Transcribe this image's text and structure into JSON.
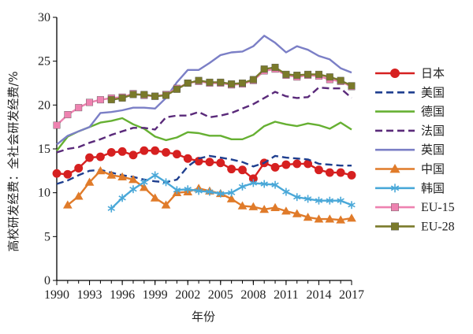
{
  "chart_data": {
    "type": "line",
    "title": "",
    "xlabel": "年份",
    "ylabel": "高校研发经费：全社会研发经费/%",
    "xlim": [
      1990,
      2017
    ],
    "ylim": [
      0,
      30
    ],
    "x_ticks": [
      "1990",
      "1993",
      "1996",
      "1999",
      "2002",
      "2005",
      "2008",
      "2011",
      "2014",
      "2017"
    ],
    "y_ticks": [
      "0",
      "5",
      "10",
      "15",
      "20",
      "25",
      "30"
    ],
    "legend_position": "right",
    "series": [
      {
        "name": "日本",
        "color": "#d62020",
        "dash": "solid",
        "marker": "circle",
        "x": [
          1990,
          1991,
          1992,
          1993,
          1994,
          1995,
          1996,
          1997,
          1998,
          1999,
          2000,
          2001,
          2002,
          2003,
          2004,
          2005,
          2006,
          2007,
          2008,
          2009,
          2010,
          2011,
          2012,
          2013,
          2014,
          2015,
          2016,
          2017
        ],
        "values": [
          12.2,
          12.1,
          12.8,
          14.0,
          14.1,
          14.6,
          14.7,
          14.3,
          14.8,
          14.8,
          14.6,
          14.4,
          13.9,
          13.6,
          13.5,
          13.4,
          12.7,
          12.6,
          11.6,
          13.4,
          12.9,
          13.2,
          13.3,
          13.3,
          12.6,
          12.3,
          12.3,
          12.0
        ]
      },
      {
        "name": "美国",
        "color": "#1f3f8f",
        "dash": "dash",
        "marker": "none",
        "x": [
          1990,
          1991,
          1992,
          1993,
          1994,
          1995,
          1996,
          1997,
          1998,
          1999,
          2000,
          2001,
          2002,
          2003,
          2004,
          2005,
          2006,
          2007,
          2008,
          2009,
          2010,
          2011,
          2012,
          2013,
          2014,
          2015,
          2016,
          2017
        ],
        "values": [
          11.0,
          11.4,
          12.0,
          12.5,
          12.6,
          12.3,
          12.0,
          11.8,
          11.5,
          11.3,
          11.2,
          11.5,
          13.0,
          13.9,
          14.2,
          14.0,
          13.8,
          13.5,
          13.0,
          13.4,
          14.2,
          14.0,
          13.9,
          13.8,
          13.3,
          13.2,
          13.1,
          13.1
        ]
      },
      {
        "name": "德国",
        "color": "#66b032",
        "dash": "solid",
        "marker": "none",
        "x": [
          1990,
          1991,
          1992,
          1993,
          1994,
          1995,
          1996,
          1997,
          1998,
          1999,
          2000,
          2001,
          2002,
          2003,
          2004,
          2005,
          2006,
          2007,
          2008,
          2009,
          2010,
          2011,
          2012,
          2013,
          2014,
          2015,
          2016,
          2017
        ],
        "values": [
          14.8,
          16.4,
          17.0,
          17.5,
          18.0,
          18.2,
          18.5,
          17.8,
          17.3,
          16.4,
          16.0,
          16.3,
          16.9,
          16.8,
          16.5,
          16.5,
          16.1,
          16.1,
          16.6,
          17.6,
          18.1,
          17.8,
          17.6,
          17.9,
          17.7,
          17.3,
          18.0,
          17.2
        ]
      },
      {
        "name": "法国",
        "color": "#5a2a7a",
        "dash": "dash",
        "marker": "none",
        "x": [
          1990,
          1991,
          1992,
          1993,
          1994,
          1995,
          1996,
          1997,
          1998,
          1999,
          2000,
          2001,
          2002,
          2003,
          2004,
          2005,
          2006,
          2007,
          2008,
          2009,
          2010,
          2011,
          2012,
          2013,
          2014,
          2015,
          2016,
          2017
        ],
        "values": [
          14.6,
          15.0,
          15.2,
          15.7,
          16.1,
          16.6,
          17.0,
          17.4,
          17.4,
          17.2,
          18.6,
          18.8,
          18.8,
          19.2,
          18.6,
          18.8,
          19.1,
          19.6,
          20.1,
          20.8,
          21.5,
          21.0,
          20.8,
          20.9,
          22.0,
          21.9,
          21.9,
          20.8
        ]
      },
      {
        "name": "英国",
        "color": "#7b7fc6",
        "dash": "solid",
        "marker": "none",
        "x": [
          1990,
          1991,
          1992,
          1993,
          1994,
          1995,
          1996,
          1997,
          1998,
          1999,
          2000,
          2001,
          2002,
          2003,
          2004,
          2005,
          2006,
          2007,
          2008,
          2009,
          2010,
          2011,
          2012,
          2013,
          2014,
          2015,
          2016,
          2017
        ],
        "values": [
          15.5,
          16.5,
          17.0,
          17.5,
          19.1,
          19.2,
          19.4,
          19.7,
          19.7,
          19.6,
          20.8,
          22.6,
          24.0,
          24.0,
          24.8,
          25.7,
          26.0,
          26.1,
          26.7,
          27.9,
          27.1,
          26.0,
          26.7,
          26.3,
          25.6,
          25.2,
          24.2,
          23.7
        ]
      },
      {
        "name": "中国",
        "color": "#e07b2a",
        "dash": "solid",
        "marker": "triangle",
        "x": [
          1991,
          1992,
          1993,
          1994,
          1995,
          1996,
          1997,
          1998,
          1999,
          2000,
          2001,
          2002,
          2003,
          2004,
          2005,
          2006,
          2007,
          2008,
          2009,
          2010,
          2011,
          2012,
          2013,
          2014,
          2015,
          2016,
          2017
        ],
        "values": [
          8.6,
          9.6,
          11.2,
          12.5,
          12.0,
          11.8,
          11.5,
          10.6,
          9.4,
          8.6,
          10.0,
          10.1,
          10.5,
          10.2,
          9.9,
          9.3,
          8.5,
          8.4,
          8.1,
          8.3,
          7.9,
          7.6,
          7.2,
          7.0,
          7.0,
          6.9,
          7.1
        ]
      },
      {
        "name": "韩国",
        "color": "#4aa8d8",
        "dash": "solid",
        "marker": "asterisk",
        "x": [
          1995,
          1996,
          1997,
          1998,
          1999,
          2000,
          2001,
          2002,
          2003,
          2004,
          2005,
          2006,
          2007,
          2008,
          2009,
          2010,
          2011,
          2012,
          2013,
          2014,
          2015,
          2016,
          2017
        ],
        "values": [
          8.2,
          9.4,
          10.4,
          11.2,
          12.0,
          11.2,
          10.3,
          10.4,
          10.2,
          10.1,
          9.9,
          10.0,
          10.7,
          11.1,
          11.0,
          10.9,
          10.1,
          9.5,
          9.3,
          9.1,
          9.1,
          9.1,
          8.6
        ]
      },
      {
        "name": "EU-15",
        "color": "#ee82b0",
        "dash": "solid",
        "marker": "square",
        "x": [
          1990,
          1991,
          1992,
          1993,
          1994,
          1995,
          1996,
          1997,
          1998,
          1999,
          2000,
          2001,
          2002,
          2003,
          2004,
          2005,
          2006,
          2007,
          2008,
          2009,
          2010,
          2011,
          2012,
          2013,
          2014,
          2015,
          2016,
          2017
        ],
        "values": [
          17.7,
          18.9,
          19.7,
          20.3,
          20.6,
          20.8,
          20.9,
          21.3,
          21.1,
          21.0,
          21.2,
          21.9,
          22.5,
          22.7,
          22.5,
          22.5,
          22.3,
          22.4,
          22.8,
          23.9,
          24.1,
          23.4,
          23.2,
          23.4,
          23.3,
          22.9,
          22.7,
          22.1
        ]
      },
      {
        "name": "EU-28",
        "color": "#7a7a2a",
        "dash": "solid",
        "marker": "square",
        "x": [
          1995,
          1996,
          1997,
          1998,
          1999,
          2000,
          2001,
          2002,
          2003,
          2004,
          2005,
          2006,
          2007,
          2008,
          2009,
          2010,
          2011,
          2012,
          2013,
          2014,
          2015,
          2016,
          2017
        ],
        "values": [
          20.6,
          20.8,
          21.2,
          21.2,
          21.0,
          21.1,
          21.8,
          22.5,
          22.8,
          22.6,
          22.6,
          22.4,
          22.5,
          22.9,
          24.1,
          24.3,
          23.5,
          23.4,
          23.5,
          23.5,
          23.2,
          22.8,
          22.2
        ]
      }
    ]
  }
}
